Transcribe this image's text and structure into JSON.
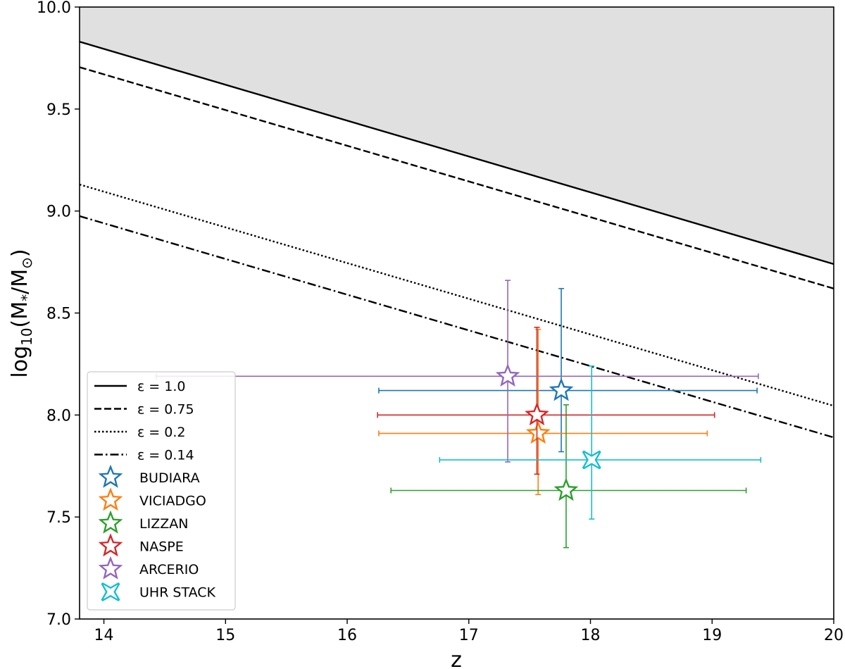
{
  "chart_data": {
    "type": "scatter",
    "title": "",
    "xlabel": "z",
    "ylabel_parts": {
      "prefix": "log",
      "sub": "10",
      "body": "(M",
      "sub2": "*",
      "mid": "/M",
      "sub3": "⊙",
      "suffix": ")"
    },
    "xlim": [
      13.8,
      20
    ],
    "ylim": [
      7.0,
      10.0
    ],
    "xticks": [
      14,
      15,
      16,
      17,
      18,
      19,
      20
    ],
    "yticks": [
      7.0,
      7.5,
      8.0,
      8.5,
      9.0,
      9.5,
      10.0
    ],
    "xtick_labels": [
      "14",
      "15",
      "16",
      "17",
      "18",
      "19",
      "20"
    ],
    "ytick_labels": [
      "7.0",
      "7.5",
      "8.0",
      "8.5",
      "9.0",
      "9.5",
      "10.0"
    ],
    "excluded_region": {
      "color": "#e0e0e0",
      "bound_line": "ε = 1.0"
    },
    "lines": [
      {
        "label": "ε = 1.0",
        "style": "solid",
        "points": [
          [
            13.8,
            9.83
          ],
          [
            20,
            8.74
          ]
        ]
      },
      {
        "label": "ε = 0.75",
        "style": "dashed",
        "points": [
          [
            13.8,
            9.705
          ],
          [
            20,
            8.62
          ]
        ]
      },
      {
        "label": "ε = 0.2",
        "style": "dotted",
        "points": [
          [
            13.8,
            9.13
          ],
          [
            20,
            8.045
          ]
        ]
      },
      {
        "label": "ε = 0.14",
        "style": "dashdot",
        "points": [
          [
            13.8,
            8.975
          ],
          [
            20,
            7.89
          ]
        ]
      }
    ],
    "series": [
      {
        "name": "BUDIARA",
        "color": "#1f77b4",
        "marker": "star",
        "x": 17.76,
        "y": 8.12,
        "xerr": [
          16.26,
          19.37
        ],
        "yerr": [
          7.82,
          8.62
        ]
      },
      {
        "name": "VICIADGO",
        "color": "#ff7f0e",
        "marker": "star",
        "x": 17.57,
        "y": 7.91,
        "xerr": [
          16.26,
          18.96
        ],
        "yerr": [
          7.61,
          8.42
        ]
      },
      {
        "name": "LIZZAN",
        "color": "#2ca02c",
        "marker": "star",
        "x": 17.8,
        "y": 7.63,
        "xerr": [
          16.36,
          19.28
        ],
        "yerr": [
          7.35,
          8.05
        ]
      },
      {
        "name": "NASPE",
        "color": "#d62728",
        "marker": "star",
        "x": 17.56,
        "y": 8.0,
        "xerr": [
          16.25,
          19.02
        ],
        "yerr": [
          7.71,
          8.43
        ]
      },
      {
        "name": "ARCERIO",
        "color": "#9467bd",
        "marker": "star",
        "x": 17.32,
        "y": 8.19,
        "xerr": [
          14.43,
          19.38
        ],
        "yerr": [
          7.77,
          8.66
        ]
      },
      {
        "name": "UHR STACK",
        "color": "#17becf",
        "marker": "x",
        "x": 18.01,
        "y": 7.78,
        "xerr": [
          16.76,
          19.4
        ],
        "yerr": [
          7.49,
          8.24
        ]
      }
    ],
    "legend": {
      "location": "lower-left"
    }
  }
}
